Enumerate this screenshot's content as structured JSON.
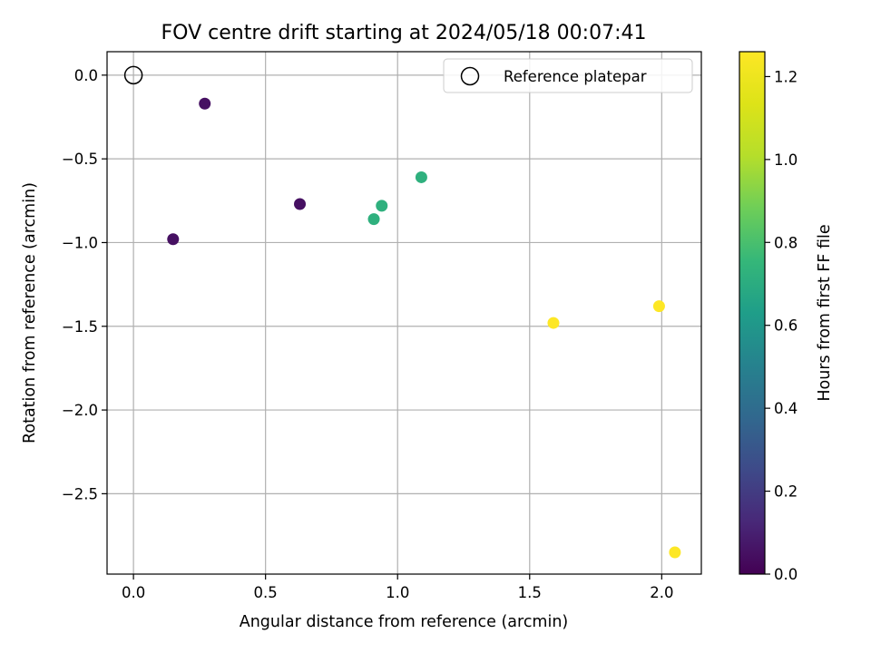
{
  "chart_data": {
    "type": "scatter",
    "title": "FOV centre drift starting at 2024/05/18 00:07:41",
    "xlabel": "Angular distance from reference (arcmin)",
    "ylabel": "Rotation from reference (arcmin)",
    "xlim": [
      -0.1,
      2.15
    ],
    "ylim": [
      -2.98,
      0.14
    ],
    "x_ticks": [
      0.0,
      0.5,
      1.0,
      1.5,
      2.0
    ],
    "x_tick_labels": [
      "0.0",
      "0.5",
      "1.0",
      "1.5",
      "2.0"
    ],
    "y_ticks": [
      0.0,
      -0.5,
      -1.0,
      -1.5,
      -2.0,
      -2.5
    ],
    "y_tick_labels": [
      "0.0",
      "−0.5",
      "−1.0",
      "−1.5",
      "−2.0",
      "−2.5"
    ],
    "grid": true,
    "reference_point": {
      "x": 0.0,
      "y": 0.0
    },
    "legend": {
      "position": "upper right",
      "entries": [
        "Reference platepar"
      ]
    },
    "points": [
      {
        "x": 0.27,
        "y": -0.17,
        "hours": 0.05
      },
      {
        "x": 0.15,
        "y": -0.98,
        "hours": 0.05
      },
      {
        "x": 0.63,
        "y": -0.77,
        "hours": 0.05
      },
      {
        "x": 0.91,
        "y": -0.86,
        "hours": 0.72
      },
      {
        "x": 0.94,
        "y": -0.78,
        "hours": 0.72
      },
      {
        "x": 1.09,
        "y": -0.61,
        "hours": 0.72
      },
      {
        "x": 1.59,
        "y": -1.48,
        "hours": 1.26
      },
      {
        "x": 1.99,
        "y": -1.38,
        "hours": 1.26
      },
      {
        "x": 2.05,
        "y": -2.85,
        "hours": 1.26
      }
    ],
    "colorbar": {
      "label": "Hours from first FF file",
      "colormap": "viridis",
      "range": [
        0.0,
        1.26
      ],
      "ticks": [
        0.0,
        0.2,
        0.4,
        0.6,
        0.8,
        1.0,
        1.2
      ],
      "tick_labels": [
        "0.0",
        "0.2",
        "0.4",
        "0.6",
        "0.8",
        "1.0",
        "1.2"
      ]
    }
  }
}
